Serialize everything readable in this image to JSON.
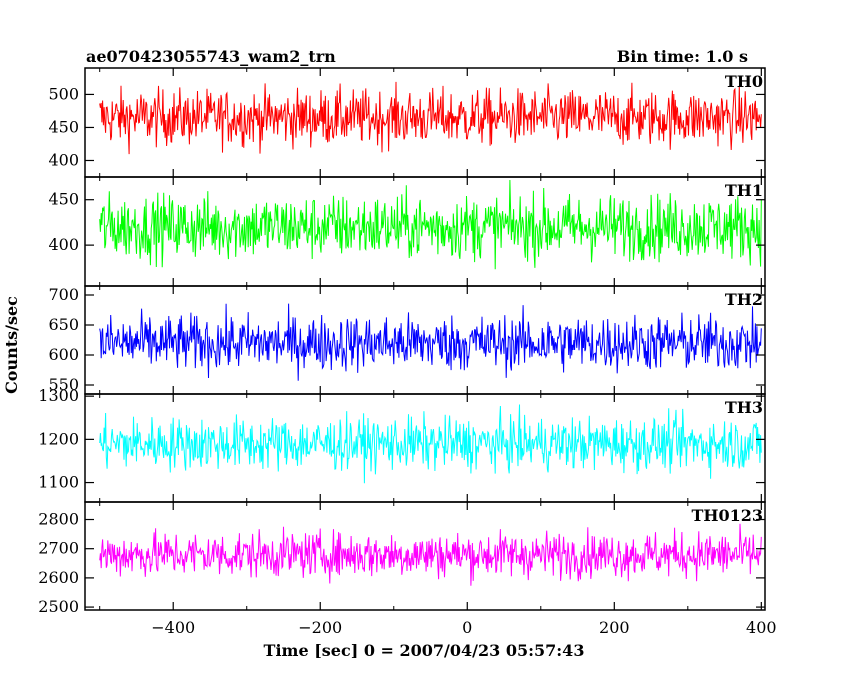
{
  "header": {
    "title": "ae070423055743_wam2_trn",
    "bin_time": "Bin time: 1.0 s"
  },
  "axes": {
    "xlabel": "Time [sec] 0 = 2007/04/23 05:57:43",
    "ylabel": "Counts/sec"
  },
  "chart_data": {
    "type": "line",
    "title": "ae070423055743_wam2_trn",
    "xlabel": "Time [sec] 0 = 2007/04/23 05:57:43",
    "ylabel": "Counts/sec",
    "xlim": [
      -520,
      405
    ],
    "xticks": [
      -400,
      -200,
      0,
      200,
      400
    ],
    "bin_time": 1.0,
    "x_start": -500,
    "x_end": 400,
    "panels": [
      {
        "name": "TH0",
        "color": "#ff0000",
        "ylim": [
          375,
          540
        ],
        "yticks": [
          400,
          450,
          500
        ],
        "mean": 465,
        "amplitude": 38
      },
      {
        "name": "TH1",
        "color": "#00ff00",
        "ylim": [
          355,
          475
        ],
        "yticks": [
          400,
          450
        ],
        "mean": 420,
        "amplitude": 32
      },
      {
        "name": "TH2",
        "color": "#0000ff",
        "ylim": [
          535,
          715
        ],
        "yticks": [
          550,
          600,
          650,
          700
        ],
        "mean": 620,
        "amplitude": 42
      },
      {
        "name": "TH3",
        "color": "#00ffff",
        "ylim": [
          1055,
          1305
        ],
        "yticks": [
          1100,
          1200,
          1300
        ],
        "mean": 1190,
        "amplitude": 55
      },
      {
        "name": "TH0123",
        "color": "#ff00ff",
        "ylim": [
          2490,
          2860
        ],
        "yticks": [
          2500,
          2600,
          2700,
          2800
        ],
        "mean": 2680,
        "amplitude": 70
      }
    ]
  }
}
